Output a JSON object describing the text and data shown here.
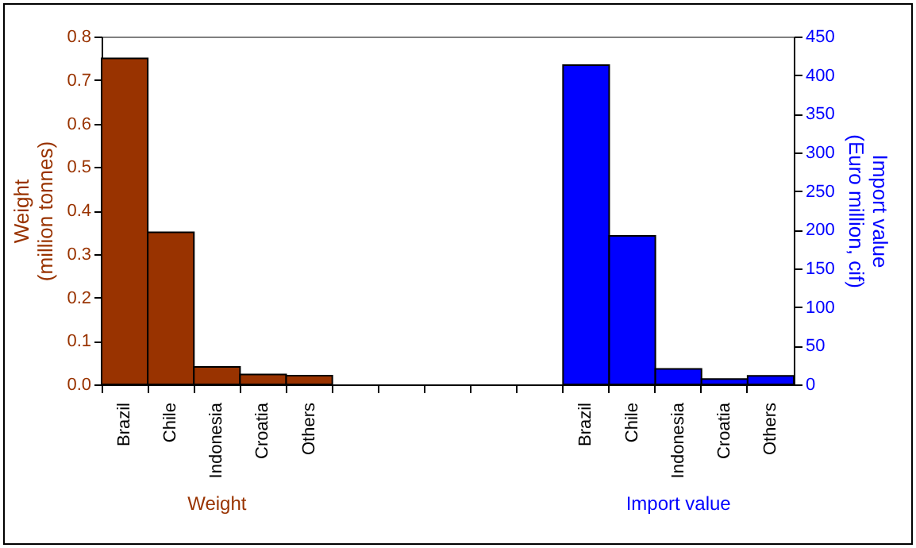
{
  "chart_data": {
    "type": "bar",
    "categories": [
      "Brazil",
      "Chile",
      "Indonesia",
      "Croatia",
      "Others",
      null,
      null,
      null,
      null,
      null,
      "Brazil",
      "Chile",
      "Indonesia",
      "Croatia",
      "Others"
    ],
    "series": [
      {
        "name": "Weight",
        "color": "#993300",
        "values": [
          0.75,
          0.35,
          0.04,
          0.023,
          0.02,
          null,
          null,
          null,
          null,
          null,
          null,
          null,
          null,
          null,
          null
        ]
      },
      {
        "name": "Import value",
        "color": "#0000ff",
        "axis": "y2",
        "values": [
          null,
          null,
          null,
          null,
          null,
          null,
          null,
          null,
          null,
          null,
          413,
          192,
          20,
          7,
          11
        ]
      }
    ],
    "ylabel": "Weight\n(million tonnes)",
    "y2label": "Import value\n(Euro million, cif)",
    "ylim": [
      0,
      0.8
    ],
    "yticks": [
      {
        "value": 0,
        "label": "0.0"
      },
      0.1,
      0.2,
      0.3,
      0.4,
      0.5,
      0.6,
      0.7,
      0.8
    ],
    "y2lim": [
      0,
      450
    ],
    "y2ticks": [
      0,
      50,
      100,
      150,
      200,
      250,
      300,
      350,
      400,
      450
    ],
    "grid": false
  }
}
